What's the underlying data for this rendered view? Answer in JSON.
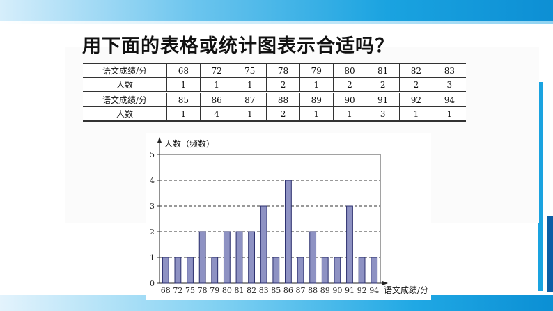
{
  "title": "用下面的表格或统计图表示合适吗？",
  "table": {
    "rows": [
      {
        "header": "语文成绩/分",
        "cells": [
          "68",
          "72",
          "75",
          "78",
          "79",
          "80",
          "81",
          "82",
          "83"
        ]
      },
      {
        "header": "人数",
        "cells": [
          "1",
          "1",
          "1",
          "2",
          "1",
          "2",
          "2",
          "2",
          "3"
        ]
      },
      {
        "header": "语文成绩/分",
        "cells": [
          "85",
          "86",
          "87",
          "88",
          "89",
          "90",
          "91",
          "92",
          "94"
        ]
      },
      {
        "header": "人数",
        "cells": [
          "1",
          "4",
          "1",
          "2",
          "1",
          "1",
          "3",
          "1",
          "1"
        ]
      }
    ]
  },
  "chart_data": {
    "type": "bar",
    "ylabel": "人数（频数）",
    "xlabel": "语文成绩/分",
    "categories": [
      "68",
      "72",
      "75",
      "78",
      "79",
      "80",
      "81",
      "82",
      "83",
      "85",
      "86",
      "87",
      "88",
      "89",
      "90",
      "91",
      "92",
      "94"
    ],
    "values": [
      1,
      1,
      1,
      2,
      1,
      2,
      2,
      2,
      3,
      1,
      4,
      1,
      2,
      1,
      1,
      3,
      1,
      1
    ],
    "ylim": [
      0,
      5
    ],
    "yticks": [
      "0",
      "1",
      "2",
      "3",
      "4",
      "5"
    ],
    "grid": "dashed horizontal",
    "bar_color": "#8e92c3",
    "bar_edge_color": "#2b2f6e"
  },
  "colors": {
    "band": "#1aa3e0",
    "band_dark": "#0c5ea6"
  }
}
